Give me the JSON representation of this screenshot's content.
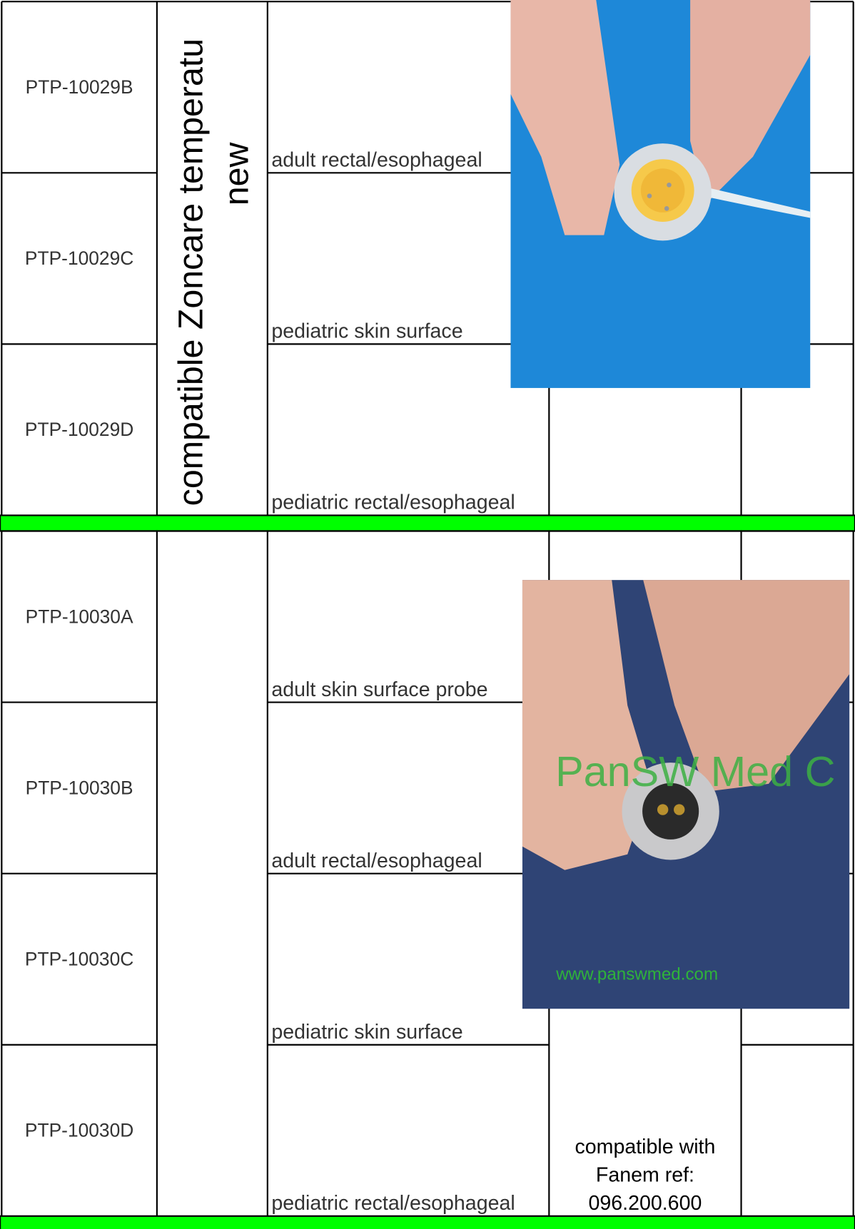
{
  "groups": [
    {
      "rows": [
        {
          "code": "PTP-10029B",
          "description": "adult rectal/esophageal"
        },
        {
          "code": "PTP-10029C",
          "description": "pediatric skin surface"
        },
        {
          "code": "PTP-10029D",
          "description": "pediatric rectal/esophageal"
        }
      ],
      "product": [
        "compatible Zoncare temperatu",
        "new"
      ]
    },
    {
      "rows": [
        {
          "code": "PTP-10030A",
          "description": "adult skin surface probe"
        },
        {
          "code": "PTP-10030B",
          "description": "adult rectal/esophageal"
        },
        {
          "code": "PTP-10030C",
          "description": "pediatric skin surface"
        },
        {
          "code": "PTP-10030D",
          "description": "pediatric rectal/esophageal"
        }
      ],
      "note": [
        "compatible with",
        "Fanem ref:",
        "096.200.600"
      ]
    }
  ],
  "watermark": {
    "brand": "PanSW Med C",
    "url": "www.panswmed.com"
  }
}
